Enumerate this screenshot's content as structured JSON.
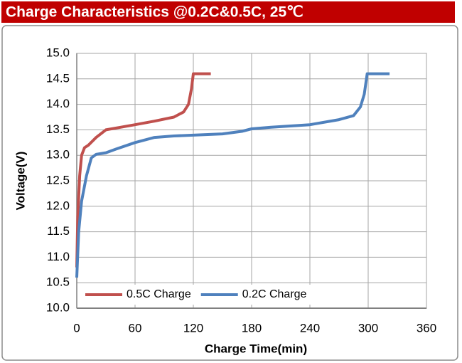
{
  "chart_data": {
    "type": "line",
    "title": "Charge  Characteristics @0.2C&0.5C, 25℃",
    "x_label": "Charge Time(min)",
    "y_label": "Voltage(V)",
    "xlim": [
      0,
      360
    ],
    "xticks": [
      0,
      60,
      120,
      180,
      240,
      300,
      360
    ],
    "ylim": [
      10,
      15
    ],
    "yticks": [
      {
        "value": 10,
        "label": "10.0"
      },
      {
        "value": 10.5,
        "label": "10.5"
      },
      {
        "value": 11,
        "label": "11.0"
      },
      {
        "value": 11.5,
        "label": "11.5"
      },
      {
        "value": 12,
        "label": "12.0"
      },
      {
        "value": 12.5,
        "label": "12.5"
      },
      {
        "value": 13,
        "label": "13.0"
      },
      {
        "value": 13.5,
        "label": "13.5"
      },
      {
        "value": 14,
        "label": "14.0"
      },
      {
        "value": 14.5,
        "label": "14.5"
      },
      {
        "value": 15,
        "label": "15.0"
      }
    ],
    "grid": true,
    "legend": "lower left",
    "series": [
      {
        "name": "0.5C Charge",
        "color": "#c0504d",
        "x": [
          0,
          1,
          3,
          5,
          8,
          12,
          20,
          30,
          45,
          60,
          80,
          100,
          110,
          115,
          118,
          120,
          125,
          138
        ],
        "values": [
          10.8,
          11.8,
          12.6,
          13.0,
          13.15,
          13.2,
          13.35,
          13.5,
          13.55,
          13.6,
          13.67,
          13.75,
          13.85,
          14.0,
          14.3,
          14.6,
          14.6,
          14.6
        ]
      },
      {
        "name": "0.2C Charge",
        "color": "#4f81bd",
        "x": [
          0,
          2,
          5,
          10,
          15,
          20,
          30,
          40,
          60,
          80,
          100,
          150,
          170,
          180,
          200,
          240,
          270,
          285,
          292,
          296,
          299,
          310,
          322
        ],
        "values": [
          10.6,
          11.5,
          12.1,
          12.6,
          12.95,
          13.02,
          13.05,
          13.12,
          13.25,
          13.35,
          13.38,
          13.42,
          13.47,
          13.52,
          13.55,
          13.6,
          13.7,
          13.78,
          13.95,
          14.2,
          14.6,
          14.6,
          14.6
        ]
      }
    ]
  }
}
